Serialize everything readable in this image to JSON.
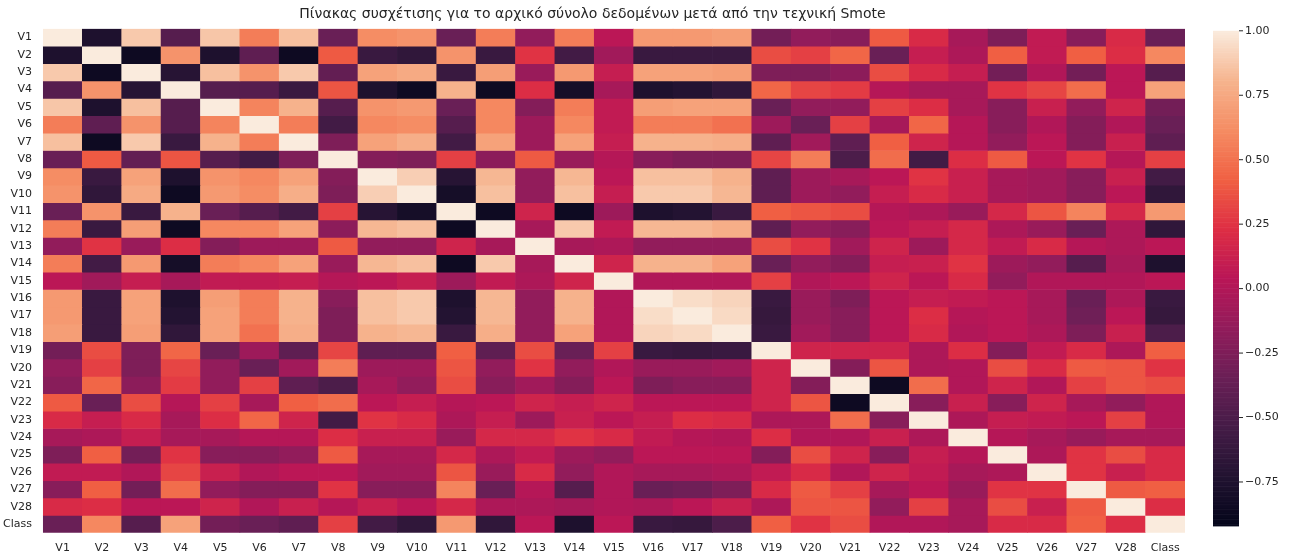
{
  "chart_data": {
    "type": "heatmap",
    "title": "Πίνακας συσχέτισης για το αρχικό σύνολο δεδομένων μετά από την τεχνική Smote",
    "categories": [
      "V1",
      "V2",
      "V3",
      "V4",
      "V5",
      "V6",
      "V7",
      "V8",
      "V9",
      "V10",
      "V11",
      "V12",
      "V13",
      "V14",
      "V15",
      "V16",
      "V17",
      "V18",
      "V19",
      "V20",
      "V21",
      "V22",
      "V23",
      "V24",
      "V25",
      "V26",
      "V27",
      "V28",
      "Class"
    ],
    "y_categories": [
      "V1",
      "V2",
      "V3",
      "V4",
      "V5",
      "V6",
      "V7",
      "V8",
      "V9",
      "V10",
      "V11",
      "V12",
      "V13",
      "V14",
      "V15",
      "V16",
      "V17",
      "V18",
      "V19",
      "V20",
      "V21",
      "V22",
      "V23",
      "V24",
      "V25",
      "V26",
      "V27",
      "V28",
      "Class"
    ],
    "clim": [
      -0.92,
      1.0
    ],
    "cticks": [
      {
        "value": -0.75,
        "label": "−0.75"
      },
      {
        "value": -0.5,
        "label": "−0.50"
      },
      {
        "value": -0.25,
        "label": "−0.25"
      },
      {
        "value": 0,
        "label": "0.00"
      },
      {
        "value": 0.25,
        "label": "0.25"
      },
      {
        "value": 0.5,
        "label": "0.50"
      },
      {
        "value": 0.75,
        "label": "0.75"
      },
      {
        "value": 1,
        "label": "1.00"
      }
    ],
    "cells": [
      [
        1,
        -0.75,
        0.88,
        -0.45,
        0.87,
        0.55,
        0.85,
        -0.35,
        0.62,
        0.65,
        -0.35,
        0.55,
        -0.15,
        0.55,
        0.05,
        0.68,
        0.68,
        0.7,
        -0.3,
        -0.15,
        -0.2,
        0.4,
        0.2,
        -0.05,
        -0.25,
        0.08,
        -0.2,
        0.2,
        -0.35
      ],
      [
        -0.75,
        1,
        -0.85,
        0.65,
        -0.75,
        -0.4,
        -0.85,
        0.4,
        -0.6,
        -0.65,
        0.65,
        -0.6,
        0.25,
        -0.55,
        -0.08,
        -0.6,
        -0.6,
        -0.6,
        0.35,
        0.3,
        0.45,
        -0.35,
        0.1,
        -0.02,
        0.42,
        0.08,
        0.42,
        0.22,
        0.6
      ],
      [
        0.88,
        -0.85,
        1,
        -0.7,
        0.85,
        0.65,
        0.88,
        -0.38,
        0.72,
        0.76,
        -0.6,
        0.7,
        -0.12,
        0.68,
        0.1,
        0.72,
        0.72,
        0.7,
        -0.25,
        -0.25,
        -0.18,
        0.35,
        0.2,
        0.1,
        -0.3,
        0,
        -0.3,
        0.05,
        -0.45
      ],
      [
        -0.45,
        0.65,
        -0.7,
        1,
        -0.45,
        -0.45,
        -0.6,
        0.38,
        -0.75,
        -0.85,
        0.8,
        -0.85,
        0.22,
        -0.8,
        -0.05,
        -0.75,
        -0.72,
        -0.65,
        0.45,
        0.32,
        0.28,
        0.02,
        -0.05,
        -0.05,
        0.25,
        0.32,
        0.48,
        0.05,
        0.72
      ],
      [
        0.87,
        -0.75,
        0.85,
        -0.45,
        1,
        0.58,
        0.8,
        -0.45,
        0.65,
        0.68,
        -0.35,
        0.6,
        -0.22,
        0.55,
        0.08,
        0.7,
        0.72,
        0.72,
        -0.35,
        -0.15,
        -0.15,
        0.3,
        0.22,
        -0.05,
        -0.2,
        0.12,
        -0.15,
        0.15,
        -0.3
      ],
      [
        0.55,
        -0.4,
        0.65,
        -0.45,
        0.58,
        1,
        0.55,
        -0.55,
        0.6,
        0.62,
        -0.45,
        0.6,
        -0.1,
        0.6,
        0.08,
        0.55,
        0.55,
        0.5,
        -0.1,
        -0.35,
        0.3,
        -0.05,
        0.45,
        0.02,
        -0.2,
        0,
        -0.22,
        0,
        -0.35
      ],
      [
        0.85,
        -0.85,
        0.88,
        -0.6,
        0.8,
        0.55,
        1,
        -0.25,
        0.72,
        0.78,
        -0.55,
        0.72,
        -0.1,
        0.72,
        0.1,
        0.8,
        0.8,
        0.78,
        -0.4,
        -0.08,
        -0.4,
        0.42,
        0.15,
        0.02,
        -0.15,
        0.05,
        -0.22,
        0.12,
        -0.4
      ],
      [
        -0.35,
        0.4,
        -0.38,
        0.38,
        -0.45,
        -0.55,
        -0.25,
        1,
        -0.22,
        -0.25,
        0.3,
        -0.18,
        0.4,
        -0.12,
        0.02,
        -0.2,
        -0.25,
        -0.25,
        0.32,
        0.55,
        -0.5,
        0.48,
        -0.55,
        0.22,
        0.4,
        0.05,
        0.25,
        0.02,
        0.3
      ],
      [
        0.62,
        -0.6,
        0.72,
        -0.75,
        0.65,
        0.6,
        0.72,
        -0.22,
        1,
        0.9,
        -0.7,
        0.82,
        -0.15,
        0.82,
        0.05,
        0.85,
        0.85,
        0.8,
        -0.4,
        -0.1,
        -0.05,
        0.05,
        0.25,
        0.12,
        -0.05,
        -0.08,
        -0.2,
        0.12,
        -0.55
      ],
      [
        0.65,
        -0.65,
        0.76,
        -0.85,
        0.68,
        0.62,
        0.78,
        -0.25,
        0.9,
        1,
        -0.8,
        0.85,
        -0.15,
        0.85,
        0.1,
        0.88,
        0.88,
        0.82,
        -0.4,
        -0.1,
        -0.15,
        0.1,
        0.2,
        0.12,
        -0.05,
        -0.08,
        -0.2,
        0.05,
        -0.65
      ],
      [
        -0.35,
        0.65,
        -0.6,
        0.8,
        -0.35,
        -0.45,
        -0.55,
        0.3,
        -0.7,
        -0.8,
        1,
        -0.85,
        0.15,
        -0.85,
        -0.1,
        -0.75,
        -0.72,
        -0.6,
        0.42,
        0.38,
        0.35,
        0.02,
        -0.02,
        -0.12,
        0.18,
        0.38,
        0.58,
        0.18,
        0.68
      ],
      [
        0.55,
        -0.6,
        0.7,
        -0.85,
        0.6,
        0.6,
        0.72,
        -0.18,
        0.82,
        0.85,
        -0.85,
        1,
        -0.05,
        0.88,
        0.08,
        0.82,
        0.82,
        0.78,
        -0.4,
        -0.15,
        -0.2,
        0.05,
        0.1,
        0.18,
        -0.02,
        -0.12,
        -0.35,
        -0.02,
        -0.65
      ],
      [
        -0.15,
        0.25,
        -0.12,
        0.22,
        -0.22,
        -0.1,
        -0.1,
        0.4,
        -0.15,
        -0.15,
        0.15,
        -0.05,
        1,
        -0.05,
        -0.02,
        -0.15,
        -0.15,
        -0.15,
        0.35,
        0.25,
        -0.08,
        0.15,
        -0.1,
        0.18,
        0.08,
        0.2,
        0.02,
        -0.02,
        0.05
      ],
      [
        0.55,
        -0.55,
        0.68,
        -0.8,
        0.55,
        0.6,
        0.72,
        -0.12,
        0.82,
        0.85,
        -0.85,
        0.88,
        -0.05,
        1,
        0.15,
        0.8,
        0.8,
        0.72,
        -0.35,
        -0.15,
        -0.22,
        0.1,
        0.12,
        0.25,
        -0.1,
        -0.15,
        -0.45,
        -0.05,
        -0.75
      ],
      [
        0.05,
        -0.08,
        0.1,
        -0.05,
        0.08,
        0.08,
        0.1,
        0.02,
        0.05,
        0.1,
        -0.1,
        0.08,
        -0.02,
        0.15,
        1,
        0,
        0,
        0,
        0.3,
        0,
        0.05,
        0.15,
        0.05,
        0.2,
        -0.15,
        0,
        0,
        0,
        0.05
      ],
      [
        0.68,
        -0.6,
        0.72,
        -0.75,
        0.7,
        0.55,
        0.8,
        -0.2,
        0.85,
        0.88,
        -0.75,
        0.82,
        -0.15,
        0.8,
        0,
        1,
        0.95,
        0.92,
        -0.6,
        -0.12,
        -0.25,
        0.05,
        0.1,
        0.08,
        0.05,
        -0.05,
        -0.35,
        -0.02,
        -0.6
      ],
      [
        0.68,
        -0.6,
        0.72,
        -0.72,
        0.72,
        0.55,
        0.8,
        -0.25,
        0.85,
        0.88,
        -0.72,
        0.82,
        -0.15,
        0.8,
        0,
        0.95,
        1,
        0.94,
        -0.62,
        -0.12,
        -0.2,
        0.05,
        0.22,
        0.02,
        0.05,
        -0.05,
        -0.32,
        0.05,
        -0.62
      ],
      [
        0.7,
        -0.6,
        0.7,
        -0.65,
        0.72,
        0.5,
        0.78,
        -0.25,
        0.8,
        0.82,
        -0.6,
        0.78,
        -0.15,
        0.72,
        0,
        0.92,
        0.94,
        1,
        -0.6,
        -0.08,
        -0.2,
        0.05,
        0.2,
        0,
        0.05,
        -0.02,
        -0.25,
        0.12,
        -0.5
      ],
      [
        -0.3,
        0.35,
        -0.25,
        0.45,
        -0.35,
        -0.1,
        -0.4,
        0.32,
        -0.4,
        -0.4,
        0.42,
        -0.4,
        0.35,
        -0.35,
        0.3,
        -0.6,
        -0.62,
        -0.6,
        1,
        0.15,
        0.15,
        0.15,
        -0.02,
        0.22,
        -0.22,
        0.08,
        0.2,
        -0.02,
        0.42
      ],
      [
        -0.15,
        0.3,
        -0.25,
        0.32,
        -0.15,
        -0.35,
        -0.08,
        0.55,
        -0.1,
        -0.1,
        0.38,
        -0.15,
        0.25,
        -0.15,
        0,
        -0.12,
        -0.12,
        -0.08,
        0.15,
        1,
        -0.22,
        0.38,
        -0.02,
        0,
        0.35,
        0.2,
        0.4,
        0.38,
        0.25
      ],
      [
        -0.2,
        0.45,
        -0.18,
        0.28,
        -0.15,
        0.3,
        -0.4,
        -0.5,
        -0.05,
        -0.15,
        0.35,
        -0.2,
        -0.08,
        -0.22,
        0.05,
        -0.25,
        -0.2,
        -0.2,
        0.15,
        -0.22,
        1,
        -0.85,
        0.48,
        0,
        0.15,
        0,
        0.3,
        0.38,
        0.35
      ],
      [
        0.4,
        -0.35,
        0.35,
        0.02,
        0.3,
        -0.05,
        0.42,
        0.48,
        0.05,
        0.1,
        0.02,
        0.05,
        0.15,
        0.1,
        0.15,
        0.05,
        0.05,
        0.05,
        0.15,
        0.38,
        -0.85,
        1,
        -0.2,
        0.12,
        -0.2,
        0.15,
        -0.05,
        -0.15,
        0
      ],
      [
        0.2,
        0.1,
        0.2,
        -0.05,
        0.22,
        0.45,
        0.15,
        -0.55,
        0.25,
        0.2,
        -0.02,
        0.1,
        -0.1,
        0.12,
        0.05,
        0.1,
        0.22,
        0.2,
        -0.02,
        -0.02,
        0.48,
        -0.2,
        1,
        -0.02,
        0.1,
        0.08,
        0.05,
        0.3,
        0
      ],
      [
        -0.05,
        -0.02,
        0.1,
        -0.05,
        -0.05,
        0.02,
        0.02,
        0.22,
        0.12,
        0.12,
        -0.12,
        0.18,
        0.18,
        0.25,
        0.2,
        0.08,
        0.02,
        0,
        0.22,
        0,
        0,
        0.12,
        -0.02,
        1,
        0.02,
        -0.05,
        -0.12,
        -0.05,
        -0.05
      ],
      [
        -0.25,
        0.42,
        -0.3,
        0.25,
        -0.2,
        -0.2,
        -0.15,
        0.4,
        -0.05,
        -0.05,
        0.18,
        -0.02,
        0.08,
        -0.1,
        -0.15,
        0.05,
        0.05,
        0.05,
        -0.22,
        0.35,
        0.15,
        -0.2,
        0.1,
        0.02,
        1,
        -0.02,
        0.25,
        0.35,
        0.2
      ],
      [
        0.08,
        0.08,
        0,
        0.32,
        0.12,
        0,
        0.05,
        0.05,
        -0.08,
        -0.08,
        0.38,
        -0.12,
        0.2,
        -0.15,
        0,
        -0.05,
        -0.05,
        -0.02,
        0.08,
        0.2,
        0,
        0.15,
        0.08,
        -0.05,
        -0.02,
        1,
        0.25,
        0.12,
        0.2
      ],
      [
        -0.2,
        0.42,
        -0.3,
        0.48,
        -0.15,
        -0.22,
        -0.22,
        0.25,
        -0.2,
        -0.2,
        0.58,
        -0.35,
        0.02,
        -0.45,
        0,
        -0.35,
        -0.32,
        -0.25,
        0.2,
        0.4,
        0.3,
        -0.05,
        0.05,
        -0.12,
        0.25,
        0.25,
        1,
        0.4,
        0.42
      ],
      [
        0.2,
        0.22,
        0.05,
        0.05,
        0.15,
        0,
        0.12,
        0.02,
        0.12,
        0.05,
        0.18,
        -0.02,
        -0.02,
        -0.05,
        0,
        -0.02,
        0.05,
        0.12,
        -0.02,
        0.38,
        0.38,
        -0.15,
        0.3,
        -0.05,
        0.35,
        0.12,
        0.4,
        1,
        0.22
      ],
      [
        -0.35,
        0.6,
        -0.45,
        0.72,
        -0.3,
        -0.35,
        -0.4,
        0.3,
        -0.55,
        -0.65,
        0.68,
        -0.65,
        0.05,
        -0.75,
        0.05,
        -0.6,
        -0.62,
        -0.5,
        0.42,
        0.25,
        0.35,
        0,
        0,
        -0.05,
        0.2,
        0.2,
        0.42,
        0.22,
        1
      ]
    ]
  }
}
